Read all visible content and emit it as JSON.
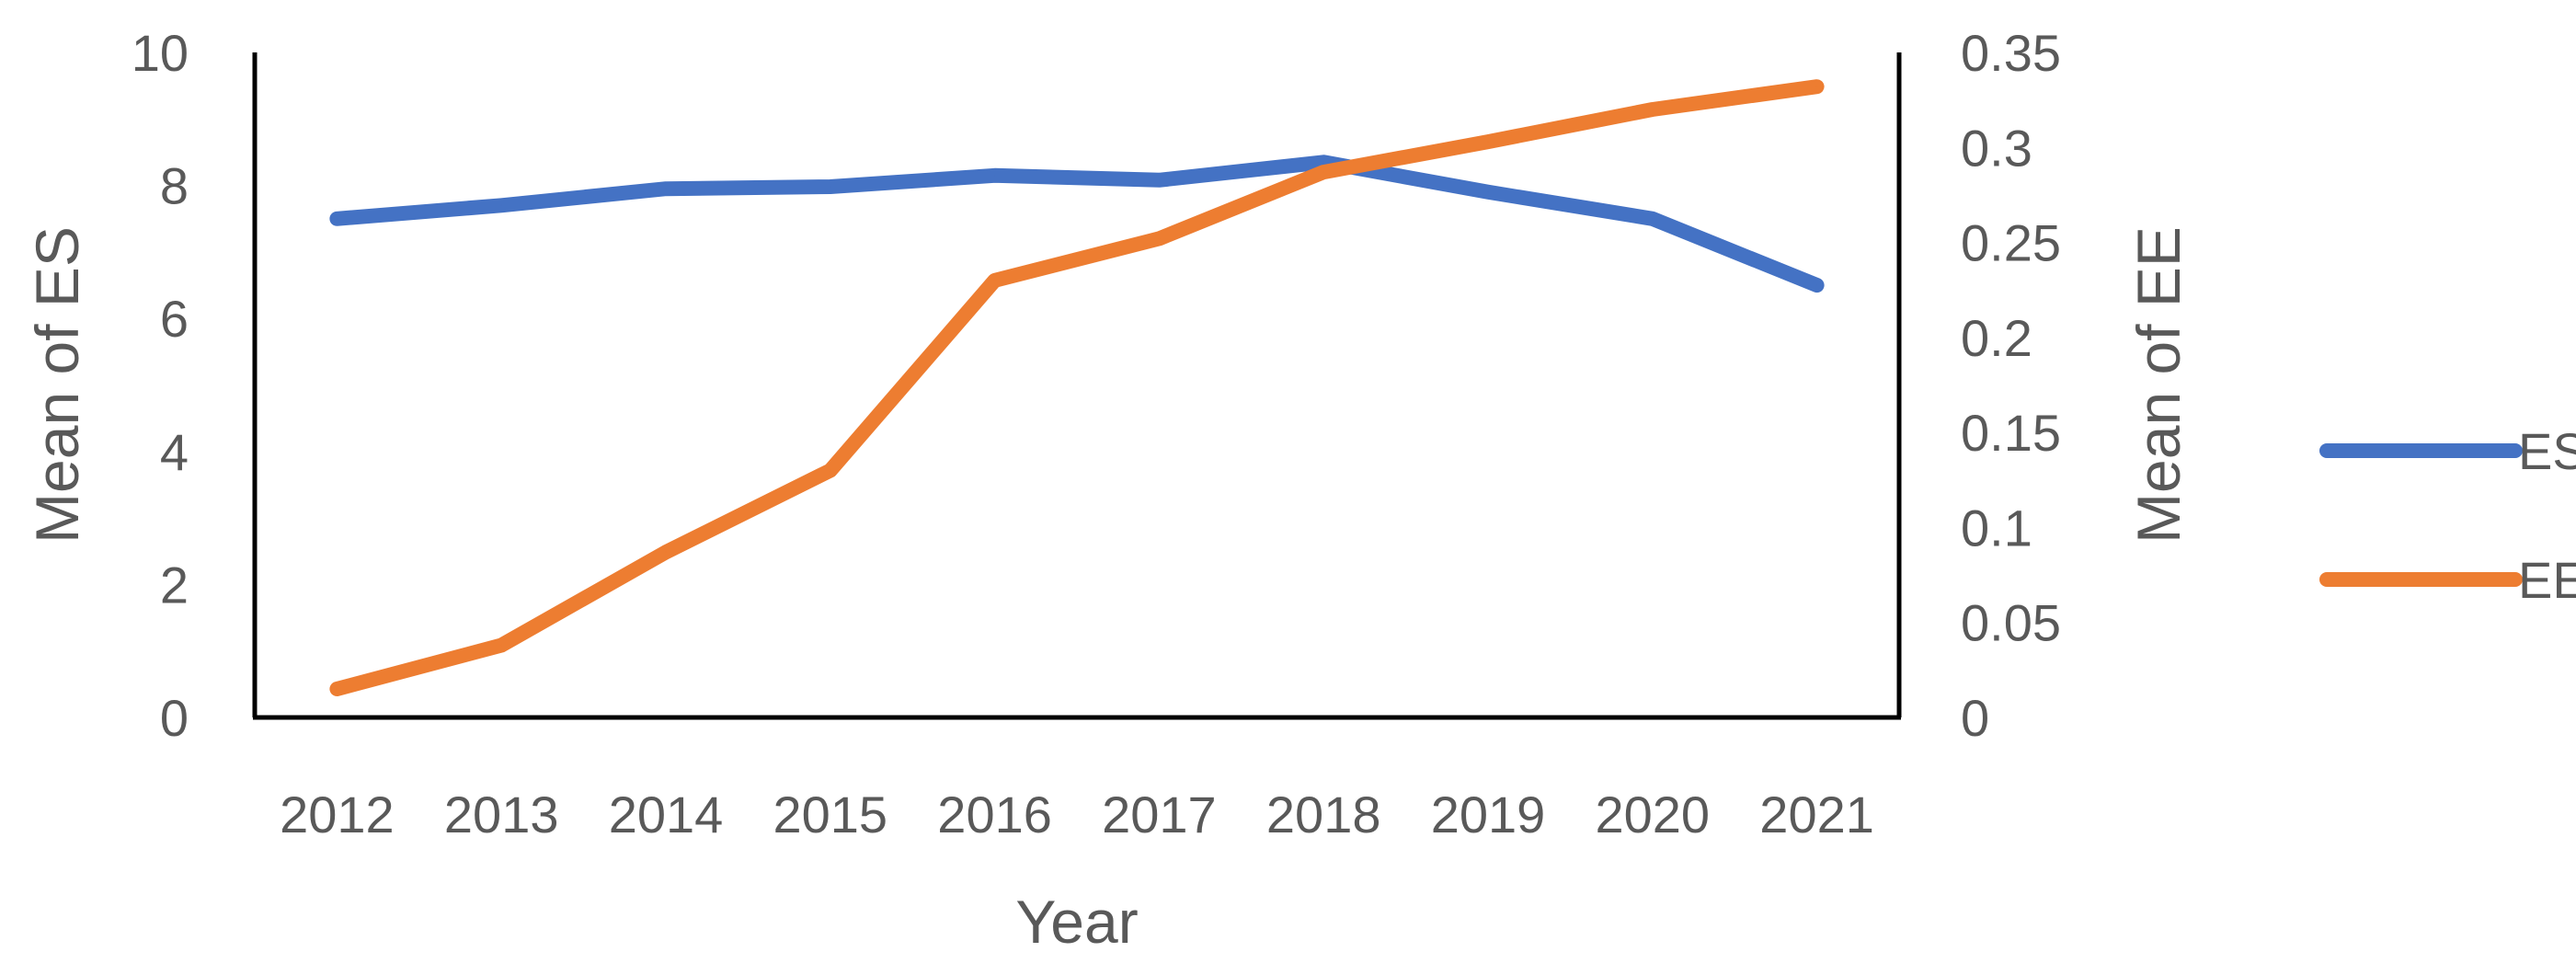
{
  "chart_data": {
    "type": "line",
    "title": "",
    "xlabel": "Year",
    "ylabel_left": "Mean of ES",
    "ylabel_right": "Mean of EE",
    "categories": [
      "2012",
      "2013",
      "2014",
      "2015",
      "2016",
      "2017",
      "2018",
      "2019",
      "2020",
      "2021"
    ],
    "y_left": {
      "lim": [
        0,
        10
      ],
      "ticks": [
        "0",
        "2",
        "4",
        "6",
        "8",
        "10"
      ]
    },
    "y_right": {
      "lim": [
        0,
        0.35
      ],
      "ticks": [
        "0",
        "0.05",
        "0.1",
        "0.15",
        "0.2",
        "0.25",
        "0.3",
        "0.35"
      ]
    },
    "series": [
      {
        "name": "ES",
        "axis": "left",
        "color": "#4472C4",
        "values": [
          7.5,
          7.7,
          7.95,
          7.98,
          8.15,
          8.08,
          8.35,
          7.9,
          7.5,
          6.5
        ]
      },
      {
        "name": "EE",
        "axis": "right",
        "color": "#ED7D31",
        "values": [
          0.015,
          0.038,
          0.087,
          0.13,
          0.23,
          0.252,
          0.287,
          0.303,
          0.32,
          0.332
        ]
      }
    ],
    "grid": false,
    "legend_position": "right"
  }
}
